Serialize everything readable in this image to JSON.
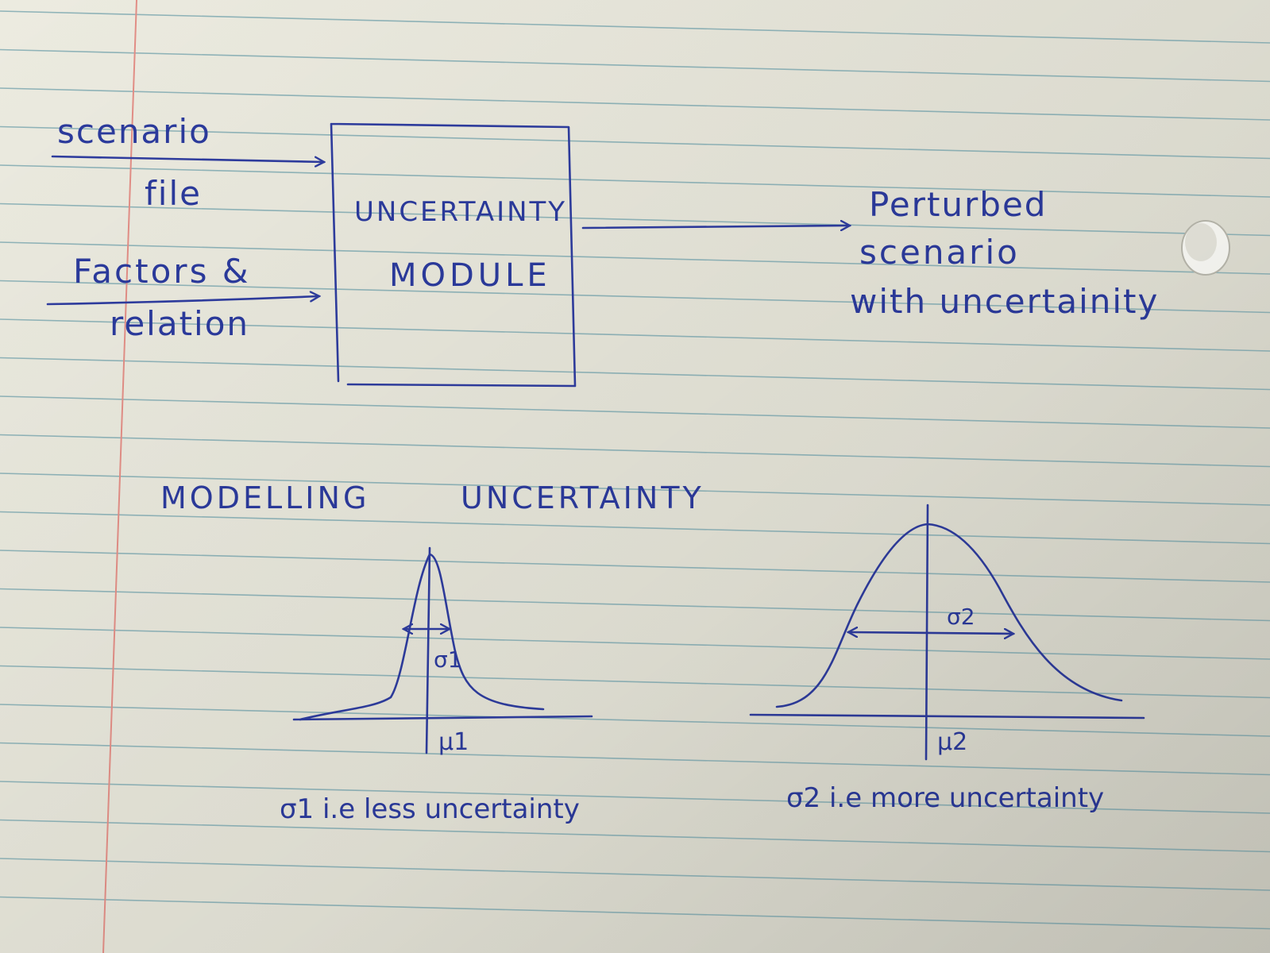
{
  "inputs": {
    "scenario_file": [
      "scenario",
      "file"
    ],
    "factors_relation": [
      "Factors &",
      "relation"
    ]
  },
  "module": {
    "line1": "UNCERTAINTY",
    "line2": "MODULE"
  },
  "output": [
    "Perturbed",
    "scenario",
    "with uncertainity"
  ],
  "section_title": {
    "word1": "MODELLING",
    "word2": "UNCERTAINTY"
  },
  "curve_narrow": {
    "sigma_label": "σ1",
    "mu_label": "μ1",
    "caption": "σ1 i.e less uncertainty"
  },
  "curve_wide": {
    "sigma_label": "σ2",
    "mu_label": "μ2",
    "caption": "σ2 i.e more uncertainty"
  },
  "colors": {
    "ink": "#2e3c9e",
    "rule_line": "#8fb3b8",
    "margin_line": "#e28e86",
    "paper": "#ecebe0"
  }
}
